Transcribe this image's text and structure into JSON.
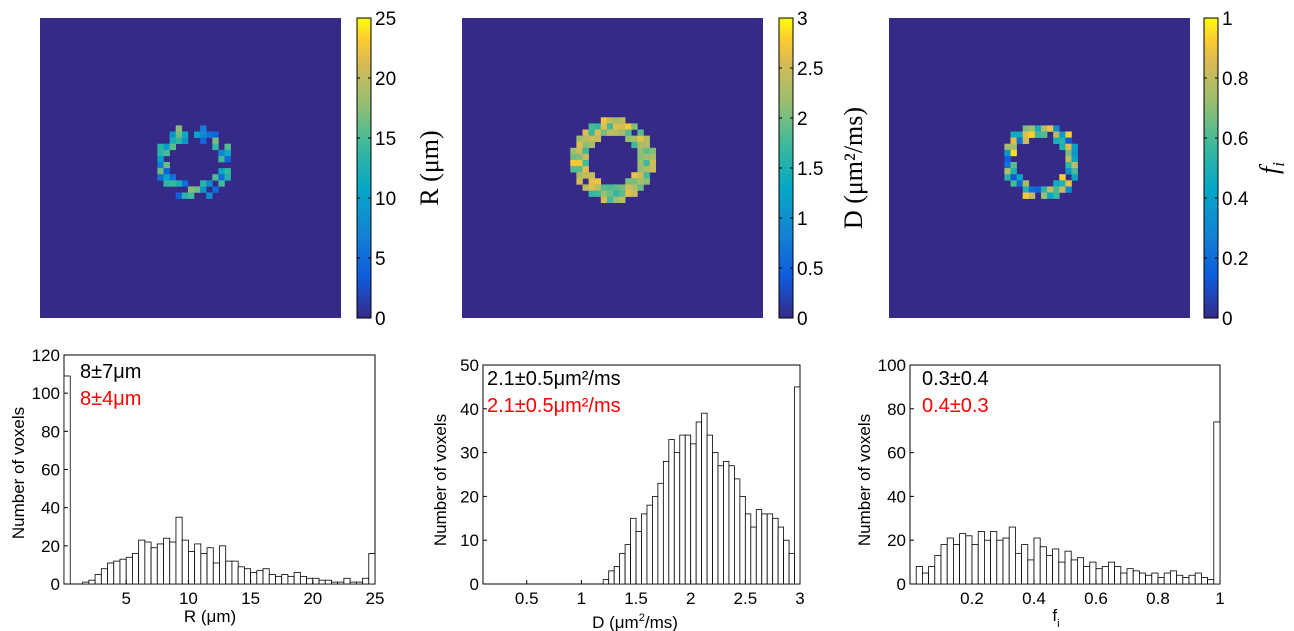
{
  "figure": {
    "map_panels": [
      {
        "id": "R",
        "colorbar_ticks": [
          "25",
          "20",
          "15",
          "10",
          "5",
          "0"
        ],
        "colorbar_label": "R (μm)",
        "colorbar_range": [
          0,
          25
        ],
        "colormap": "parula",
        "background_color": "#352a87"
      },
      {
        "id": "D",
        "colorbar_ticks": [
          "3",
          "2.5",
          "2",
          "1.5",
          "1",
          "0.5",
          "0"
        ],
        "colorbar_label": "D (μm²/ms)",
        "colorbar_range": [
          0,
          3
        ],
        "colormap": "parula",
        "background_color": "#352a87"
      },
      {
        "id": "fi",
        "colorbar_ticks": [
          "1",
          "0.8",
          "0.6",
          "0.4",
          "0.2",
          "0"
        ],
        "colorbar_label": "f",
        "colorbar_label_sub": "i",
        "colorbar_range": [
          0,
          1
        ],
        "colormap": "parula",
        "background_color": "#352a87"
      }
    ],
    "annotation_colors": {
      "primary": "#000000",
      "secondary": "#ff0000"
    }
  },
  "chart_data": [
    {
      "type": "bar",
      "subtype": "histogram",
      "xlabel": "R (μm)",
      "ylabel": "Number of voxels",
      "xlim": [
        0,
        25
      ],
      "ylim": [
        0,
        120
      ],
      "xticks": [
        "5",
        "10",
        "15",
        "20",
        "25"
      ],
      "yticks": [
        "0",
        "20",
        "40",
        "60",
        "80",
        "100",
        "120"
      ],
      "annotations": [
        "8±7μm",
        "8±4μm"
      ],
      "bin_width": 0.5,
      "bin_centers": [
        0.25,
        0.75,
        1.25,
        1.75,
        2.25,
        2.75,
        3.25,
        3.75,
        4.25,
        4.75,
        5.25,
        5.75,
        6.25,
        6.75,
        7.25,
        7.75,
        8.25,
        8.75,
        9.25,
        9.75,
        10.25,
        10.75,
        11.25,
        11.75,
        12.25,
        12.75,
        13.25,
        13.75,
        14.25,
        14.75,
        15.25,
        15.75,
        16.25,
        16.75,
        17.25,
        17.75,
        18.25,
        18.75,
        19.25,
        19.75,
        20.25,
        20.75,
        21.25,
        21.75,
        22.25,
        22.75,
        23.25,
        23.75,
        24.25,
        24.75
      ],
      "values": [
        109,
        0,
        0,
        1,
        2,
        5,
        8,
        11,
        12,
        13,
        14,
        16,
        23,
        22,
        19,
        21,
        24,
        22,
        35,
        23,
        17,
        21,
        16,
        19,
        11,
        20,
        12,
        12,
        9,
        8,
        6,
        7,
        8,
        5,
        4,
        5,
        4,
        6,
        4,
        3,
        3,
        2,
        2,
        1,
        1,
        3,
        1,
        1,
        3,
        16
      ]
    },
    {
      "type": "bar",
      "subtype": "histogram",
      "xlabel": "D (μm²/ms)",
      "ylabel": "Number of voxels",
      "xlim": [
        0.1,
        3
      ],
      "ylim": [
        0,
        50
      ],
      "xticks": [
        "0.5",
        "1",
        "1.5",
        "2",
        "2.5",
        "3"
      ],
      "yticks": [
        "0",
        "10",
        "20",
        "30",
        "40",
        "50"
      ],
      "annotations": [
        "2.1±0.5μm²/ms",
        "2.1±0.5μm²/ms"
      ],
      "bin_width": 0.05,
      "bin_centers": [
        1.225,
        1.275,
        1.325,
        1.375,
        1.425,
        1.475,
        1.525,
        1.575,
        1.625,
        1.675,
        1.725,
        1.775,
        1.825,
        1.875,
        1.925,
        1.975,
        2.025,
        2.075,
        2.125,
        2.175,
        2.225,
        2.275,
        2.325,
        2.375,
        2.425,
        2.475,
        2.525,
        2.575,
        2.625,
        2.675,
        2.725,
        2.775,
        2.825,
        2.875,
        2.925,
        2.975
      ],
      "values": [
        1,
        3,
        4,
        7,
        9,
        15,
        12,
        16,
        18,
        20,
        23,
        28,
        33,
        30,
        34,
        34,
        32,
        37,
        39,
        34,
        30,
        27,
        28,
        27,
        24,
        20,
        16,
        13,
        17,
        16,
        16,
        15,
        13,
        10,
        7,
        45
      ]
    },
    {
      "type": "bar",
      "subtype": "histogram",
      "xlabel": "f",
      "xlabel_sub": "i",
      "ylabel": "Number of voxels",
      "xlim": [
        0,
        1
      ],
      "ylim": [
        0,
        100
      ],
      "xticks": [
        "0.2",
        "0.4",
        "0.6",
        "0.8",
        "1"
      ],
      "yticks": [
        "0",
        "20",
        "40",
        "60",
        "80",
        "100"
      ],
      "annotations": [
        "0.3±0.4",
        "0.4±0.3"
      ],
      "bin_width": 0.02,
      "bin_centers": [
        0.01,
        0.03,
        0.05,
        0.07,
        0.09,
        0.11,
        0.13,
        0.15,
        0.17,
        0.19,
        0.21,
        0.23,
        0.25,
        0.27,
        0.29,
        0.31,
        0.33,
        0.35,
        0.37,
        0.39,
        0.41,
        0.43,
        0.45,
        0.47,
        0.49,
        0.51,
        0.53,
        0.55,
        0.57,
        0.59,
        0.61,
        0.63,
        0.65,
        0.67,
        0.69,
        0.71,
        0.73,
        0.75,
        0.77,
        0.79,
        0.81,
        0.83,
        0.85,
        0.87,
        0.89,
        0.91,
        0.93,
        0.95,
        0.97,
        0.99
      ],
      "values": [
        0,
        8,
        5,
        8,
        13,
        18,
        21,
        18,
        23,
        22,
        18,
        24,
        20,
        24,
        20,
        21,
        26,
        14,
        18,
        11,
        21,
        17,
        13,
        16,
        10,
        15,
        11,
        12,
        8,
        10,
        7,
        8,
        10,
        8,
        5,
        7,
        6,
        5,
        4,
        5,
        3,
        5,
        6,
        4,
        3,
        4,
        5,
        3,
        2,
        74
      ]
    }
  ]
}
